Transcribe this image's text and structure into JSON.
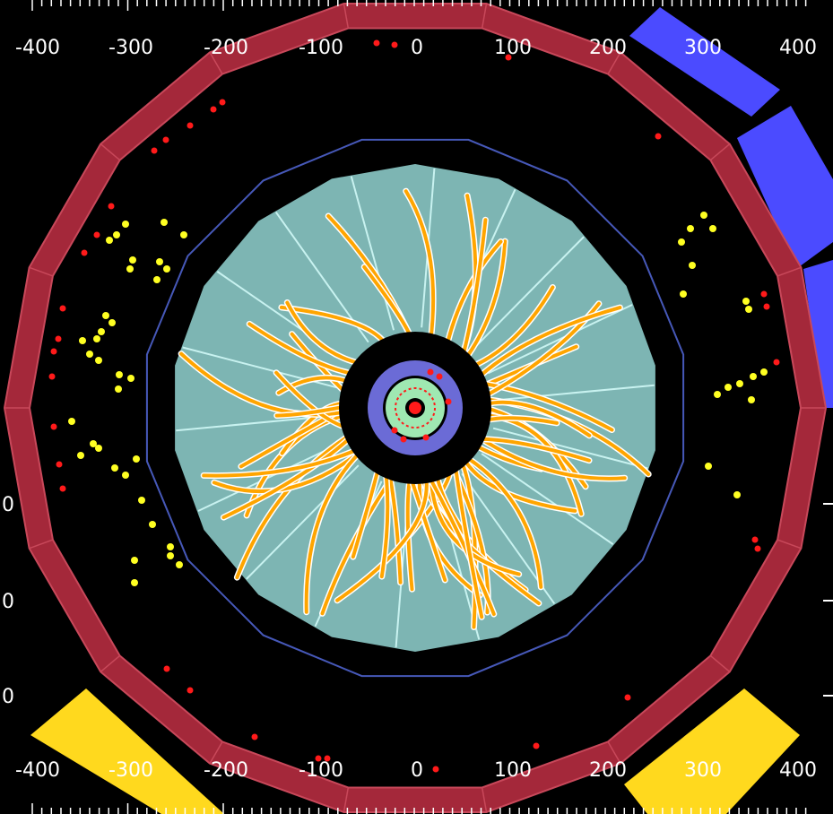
{
  "top_axis": {
    "labels": [
      "-400",
      "-300",
      "-200",
      "-100",
      "0",
      "100",
      "200",
      "300",
      "400"
    ]
  },
  "bottom_axis": {
    "labels": [
      "-400",
      "-300",
      "-200",
      "-100",
      "0",
      "100",
      "200",
      "300",
      "400"
    ]
  },
  "left_axis": {
    "labels": [
      "0",
      "0",
      "0"
    ]
  },
  "colors": {
    "background": "#000000",
    "muon_ring": "#a4283a",
    "muon_ring_edge": "#c8485a",
    "solenoid": "#4658b8",
    "calorimeter": "#7db5b3",
    "calorimeter_lines": "#c8f2f0",
    "tracks": "#ffa500",
    "tracker_core": "#6b6bd6",
    "inner_detector": "#9fe8b2",
    "muon_chamber_blue": "#4b4bff",
    "muon_chamber_yellow": "#ffd91e",
    "hits_red": "#ff1a1a",
    "hits_yellow": "#ffff22"
  }
}
